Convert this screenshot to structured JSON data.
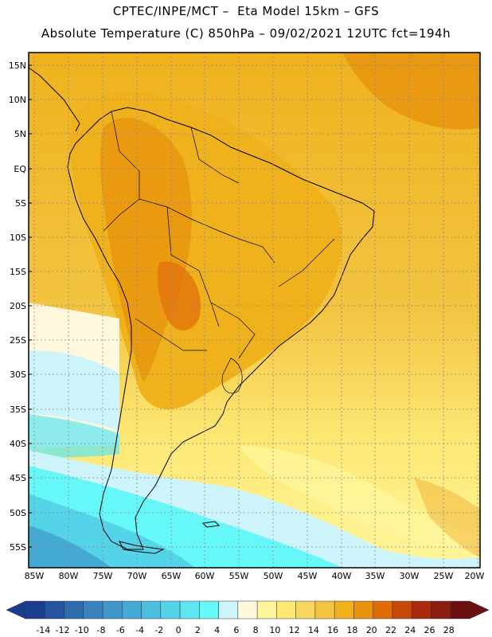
{
  "header": {
    "title_line1": "CPTEC/INPE/MCT –  Eta Model 15km – GFS",
    "title_line2": "Absolute Temperature (C) 850hPa – 09/02/2021 12UTC fct=194h"
  },
  "map": {
    "lat_labels": [
      "15N",
      "10N",
      "5N",
      "EQ",
      "5S",
      "10S",
      "15S",
      "20S",
      "25S",
      "30S",
      "35S",
      "40S",
      "45S",
      "50S",
      "55S"
    ],
    "lon_labels": [
      "85W",
      "80W",
      "75W",
      "70W",
      "65W",
      "60W",
      "55W",
      "50W",
      "45W",
      "40W",
      "35W",
      "30W",
      "25W",
      "20W"
    ]
  },
  "colorbar": {
    "ticks": [
      "-14",
      "-12",
      "-10",
      "-8",
      "-6",
      "-4",
      "-2",
      "0",
      "2",
      "4",
      "6",
      "8",
      "10",
      "12",
      "14",
      "16",
      "18",
      "20",
      "22",
      "24",
      "26",
      "28"
    ],
    "colors": [
      "#1a3d8f",
      "#2653a0",
      "#2e6aae",
      "#3a82bd",
      "#3f96c8",
      "#45aad3",
      "#4dbfde",
      "#55d3e8",
      "#5de6f1",
      "#66f7f9",
      "#cdf4fb",
      "#fff8dc",
      "#fff59b",
      "#fde874",
      "#f9d860",
      "#f3c442",
      "#efb21d",
      "#e8940f",
      "#e06c08",
      "#c8480a",
      "#a82a0a",
      "#8a1d10",
      "#6b1010"
    ]
  }
}
